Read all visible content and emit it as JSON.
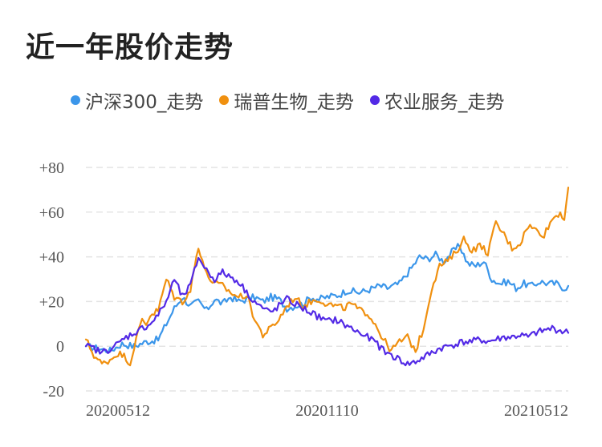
{
  "title": "近一年股价走势",
  "colors": {
    "grid": "#e4e4e4",
    "axis_text": "#555555"
  },
  "chart_data": {
    "type": "line",
    "title": "近一年股价走势",
    "xlabel": "",
    "ylabel": "",
    "ylim": [
      -20,
      80
    ],
    "yticks": [
      {
        "value": 80,
        "label": "+80"
      },
      {
        "value": 60,
        "label": "+60"
      },
      {
        "value": 40,
        "label": "+40"
      },
      {
        "value": 20,
        "label": "+20"
      },
      {
        "value": 0,
        "label": "0"
      },
      {
        "value": -20,
        "label": "-20"
      }
    ],
    "xticks": [
      {
        "index": 0,
        "label": "20200512"
      },
      {
        "index": 120,
        "label": "20201110"
      },
      {
        "index": 240,
        "label": "20210512"
      }
    ],
    "x_count": 241,
    "grid": true,
    "legend_position": "top",
    "series": [
      {
        "name": "沪深300_走势",
        "color": "#3b96ea",
        "keypoints": [
          [
            0,
            0
          ],
          [
            6,
            -1
          ],
          [
            12,
            -2
          ],
          [
            18,
            1
          ],
          [
            24,
            0
          ],
          [
            30,
            2
          ],
          [
            36,
            3
          ],
          [
            40,
            10
          ],
          [
            44,
            17
          ],
          [
            48,
            22
          ],
          [
            52,
            18
          ],
          [
            56,
            20
          ],
          [
            60,
            16
          ],
          [
            64,
            21
          ],
          [
            68,
            19
          ],
          [
            72,
            22
          ],
          [
            76,
            20
          ],
          [
            80,
            21
          ],
          [
            84,
            22
          ],
          [
            88,
            20
          ],
          [
            92,
            22
          ],
          [
            96,
            21
          ],
          [
            100,
            17
          ],
          [
            104,
            18
          ],
          [
            108,
            19
          ],
          [
            112,
            22
          ],
          [
            116,
            21
          ],
          [
            120,
            22
          ],
          [
            126,
            23
          ],
          [
            130,
            25
          ],
          [
            136,
            24
          ],
          [
            140,
            25
          ],
          [
            146,
            27
          ],
          [
            150,
            26
          ],
          [
            156,
            28
          ],
          [
            162,
            35
          ],
          [
            166,
            40
          ],
          [
            170,
            39
          ],
          [
            174,
            41
          ],
          [
            178,
            38
          ],
          [
            182,
            42
          ],
          [
            186,
            45
          ],
          [
            190,
            37
          ],
          [
            194,
            36
          ],
          [
            198,
            38
          ],
          [
            202,
            30
          ],
          [
            206,
            28
          ],
          [
            210,
            29
          ],
          [
            214,
            26
          ],
          [
            218,
            28
          ],
          [
            222,
            27
          ],
          [
            226,
            29
          ],
          [
            230,
            28
          ],
          [
            234,
            28
          ],
          [
            238,
            26
          ],
          [
            240,
            27
          ]
        ]
      },
      {
        "name": "瑞普生物_走势",
        "color": "#f0900f",
        "keypoints": [
          [
            0,
            3
          ],
          [
            4,
            -4
          ],
          [
            8,
            -8
          ],
          [
            12,
            -6
          ],
          [
            16,
            -3
          ],
          [
            20,
            -5
          ],
          [
            22,
            -8
          ],
          [
            24,
            0
          ],
          [
            28,
            12
          ],
          [
            30,
            10
          ],
          [
            32,
            14
          ],
          [
            36,
            16
          ],
          [
            40,
            30
          ],
          [
            44,
            22
          ],
          [
            48,
            20
          ],
          [
            52,
            25
          ],
          [
            56,
            45
          ],
          [
            60,
            32
          ],
          [
            64,
            28
          ],
          [
            68,
            27
          ],
          [
            72,
            24
          ],
          [
            76,
            22
          ],
          [
            80,
            23
          ],
          [
            84,
            12
          ],
          [
            88,
            5
          ],
          [
            92,
            8
          ],
          [
            96,
            12
          ],
          [
            100,
            18
          ],
          [
            104,
            22
          ],
          [
            108,
            18
          ],
          [
            112,
            20
          ],
          [
            116,
            21
          ],
          [
            120,
            19
          ],
          [
            124,
            18
          ],
          [
            128,
            17
          ],
          [
            132,
            19
          ],
          [
            136,
            16
          ],
          [
            140,
            15
          ],
          [
            144,
            10
          ],
          [
            148,
            3
          ],
          [
            152,
            -2
          ],
          [
            156,
            2
          ],
          [
            160,
            4
          ],
          [
            164,
            -2
          ],
          [
            168,
            8
          ],
          [
            172,
            26
          ],
          [
            176,
            36
          ],
          [
            180,
            38
          ],
          [
            184,
            42
          ],
          [
            188,
            48
          ],
          [
            192,
            43
          ],
          [
            196,
            45
          ],
          [
            200,
            42
          ],
          [
            204,
            55
          ],
          [
            208,
            50
          ],
          [
            212,
            44
          ],
          [
            216,
            46
          ],
          [
            220,
            54
          ],
          [
            224,
            52
          ],
          [
            228,
            50
          ],
          [
            232,
            57
          ],
          [
            236,
            60
          ],
          [
            238,
            57
          ],
          [
            240,
            71
          ]
        ]
      },
      {
        "name": "农业服务_走势",
        "color": "#5229e6",
        "keypoints": [
          [
            0,
            0
          ],
          [
            4,
            -1
          ],
          [
            8,
            -3
          ],
          [
            12,
            -1
          ],
          [
            16,
            1
          ],
          [
            20,
            4
          ],
          [
            24,
            6
          ],
          [
            28,
            8
          ],
          [
            32,
            10
          ],
          [
            36,
            14
          ],
          [
            40,
            20
          ],
          [
            44,
            30
          ],
          [
            48,
            22
          ],
          [
            52,
            27
          ],
          [
            56,
            40
          ],
          [
            60,
            34
          ],
          [
            64,
            30
          ],
          [
            68,
            33
          ],
          [
            72,
            31
          ],
          [
            76,
            29
          ],
          [
            80,
            24
          ],
          [
            84,
            20
          ],
          [
            88,
            17
          ],
          [
            92,
            15
          ],
          [
            96,
            18
          ],
          [
            100,
            21
          ],
          [
            104,
            19
          ],
          [
            108,
            17
          ],
          [
            112,
            15
          ],
          [
            116,
            13
          ],
          [
            120,
            11
          ],
          [
            124,
            12
          ],
          [
            128,
            10
          ],
          [
            132,
            8
          ],
          [
            136,
            6
          ],
          [
            140,
            4
          ],
          [
            144,
            2
          ],
          [
            148,
            -2
          ],
          [
            152,
            -4
          ],
          [
            156,
            -6
          ],
          [
            160,
            -8
          ],
          [
            164,
            -7
          ],
          [
            168,
            -5
          ],
          [
            172,
            -3
          ],
          [
            176,
            -1
          ],
          [
            180,
            0
          ],
          [
            184,
            1
          ],
          [
            188,
            2
          ],
          [
            192,
            2
          ],
          [
            196,
            3
          ],
          [
            200,
            2
          ],
          [
            204,
            3
          ],
          [
            208,
            4
          ],
          [
            212,
            4
          ],
          [
            216,
            5
          ],
          [
            220,
            4
          ],
          [
            224,
            6
          ],
          [
            228,
            7
          ],
          [
            232,
            8
          ],
          [
            236,
            7
          ],
          [
            240,
            6
          ]
        ]
      }
    ]
  }
}
